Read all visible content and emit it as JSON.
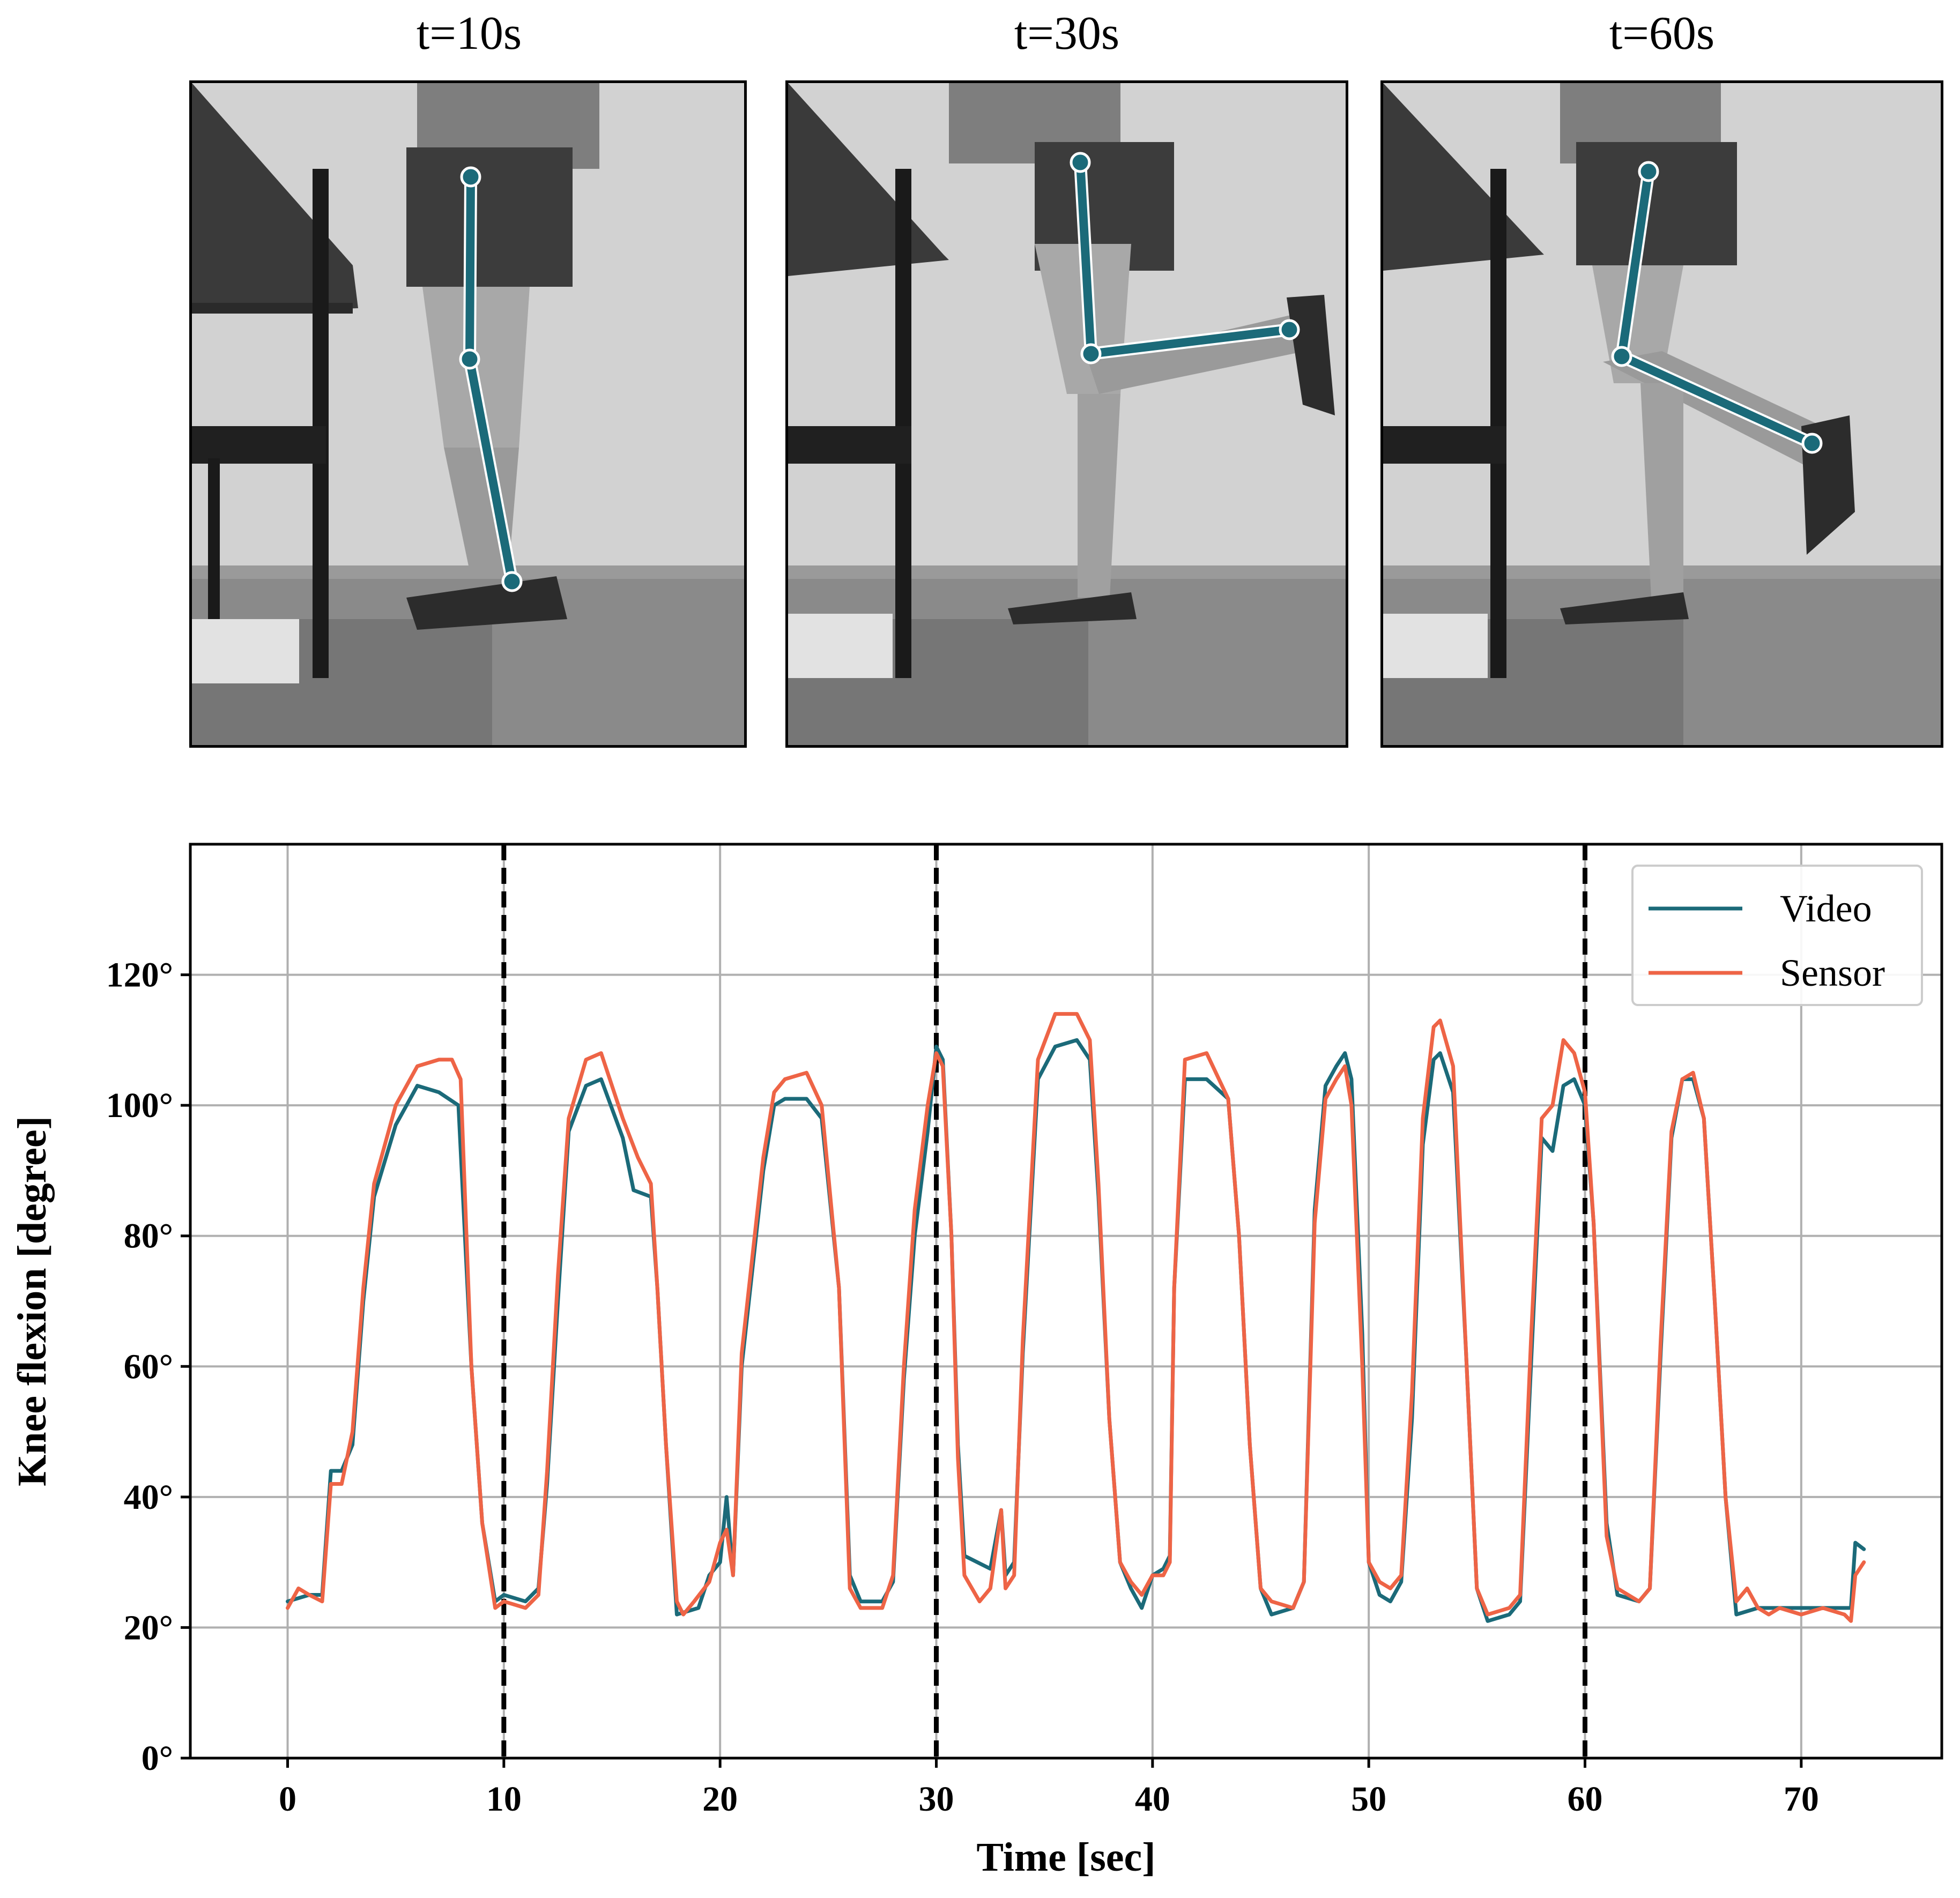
{
  "panels": [
    {
      "title": "t=10s",
      "pose": "standing"
    },
    {
      "title": "t=30s",
      "pose": "flexed-horizontal"
    },
    {
      "title": "t=60s",
      "pose": "flexed-diagonal"
    }
  ],
  "colors": {
    "video": "#1b6a79",
    "sensor": "#ee6446",
    "skeleton": "#1b6a79",
    "grid": "#b0b0b0",
    "markers": "#000000"
  },
  "chart_data": {
    "type": "line",
    "xlabel": "Time [sec]",
    "ylabel": "Knee flexion [degree]",
    "xlim": [
      -4.5,
      76.5
    ],
    "ylim": [
      0,
      140
    ],
    "xticks": [
      0,
      10,
      20,
      30,
      40,
      50,
      60,
      70
    ],
    "yticks": [
      0,
      20,
      40,
      60,
      80,
      100,
      120
    ],
    "ytick_labels": [
      "0°",
      "20°",
      "40°",
      "60°",
      "80°",
      "100°",
      "120°"
    ],
    "grid": true,
    "legend_position": "top-right",
    "vlines": [
      10,
      30,
      60
    ],
    "series": [
      {
        "name": "Video",
        "color": "#1b6a79",
        "points": [
          [
            0,
            24
          ],
          [
            1,
            25
          ],
          [
            1.6,
            25
          ],
          [
            2,
            44
          ],
          [
            2.5,
            44
          ],
          [
            3,
            48
          ],
          [
            3.5,
            70
          ],
          [
            4,
            86
          ],
          [
            5,
            97
          ],
          [
            6,
            103
          ],
          [
            7,
            102
          ],
          [
            7.9,
            100
          ],
          [
            8.5,
            60
          ],
          [
            9,
            36
          ],
          [
            9.6,
            24
          ],
          [
            10,
            25
          ],
          [
            11,
            24
          ],
          [
            11.6,
            26
          ],
          [
            12,
            42
          ],
          [
            12.5,
            70
          ],
          [
            13,
            96
          ],
          [
            13.8,
            103
          ],
          [
            14.5,
            104
          ],
          [
            15.5,
            95
          ],
          [
            16,
            87
          ],
          [
            16.8,
            86
          ],
          [
            17.1,
            72
          ],
          [
            17.5,
            48
          ],
          [
            18,
            22
          ],
          [
            19,
            23
          ],
          [
            19.5,
            28
          ],
          [
            20,
            30
          ],
          [
            20.3,
            40
          ],
          [
            20.6,
            28
          ],
          [
            21,
            60
          ],
          [
            22,
            90
          ],
          [
            22.5,
            100
          ],
          [
            23,
            101
          ],
          [
            24,
            101
          ],
          [
            24.7,
            98
          ],
          [
            25.5,
            72
          ],
          [
            26,
            28
          ],
          [
            26.5,
            24
          ],
          [
            27.5,
            24
          ],
          [
            28,
            27
          ],
          [
            28.5,
            58
          ],
          [
            29,
            80
          ],
          [
            29.6,
            96
          ],
          [
            30,
            109
          ],
          [
            30.3,
            107
          ],
          [
            30.7,
            80
          ],
          [
            31,
            48
          ],
          [
            31.3,
            31
          ],
          [
            32.5,
            29
          ],
          [
            33,
            38
          ],
          [
            33.2,
            28
          ],
          [
            33.6,
            30
          ],
          [
            34,
            62
          ],
          [
            34.7,
            104
          ],
          [
            35.5,
            109
          ],
          [
            36.5,
            110
          ],
          [
            37.1,
            107
          ],
          [
            37.5,
            86
          ],
          [
            38,
            52
          ],
          [
            38.5,
            30
          ],
          [
            39,
            26
          ],
          [
            39.5,
            23
          ],
          [
            40,
            28
          ],
          [
            40.5,
            29
          ],
          [
            40.8,
            31
          ],
          [
            41,
            72
          ],
          [
            41.5,
            104
          ],
          [
            42.5,
            104
          ],
          [
            43.5,
            101
          ],
          [
            44,
            80
          ],
          [
            44.5,
            48
          ],
          [
            45,
            26
          ],
          [
            45.5,
            22
          ],
          [
            46.5,
            23
          ],
          [
            47,
            27
          ],
          [
            47.5,
            84
          ],
          [
            48,
            103
          ],
          [
            48.5,
            106
          ],
          [
            48.9,
            108
          ],
          [
            49.2,
            104
          ],
          [
            49.7,
            65
          ],
          [
            50,
            30
          ],
          [
            50.5,
            25
          ],
          [
            51,
            24
          ],
          [
            51.5,
            27
          ],
          [
            52,
            52
          ],
          [
            52.5,
            94
          ],
          [
            53,
            107
          ],
          [
            53.3,
            108
          ],
          [
            53.9,
            102
          ],
          [
            54.5,
            62
          ],
          [
            55,
            26
          ],
          [
            55.5,
            21
          ],
          [
            56.5,
            22
          ],
          [
            57,
            24
          ],
          [
            57.5,
            60
          ],
          [
            58,
            95
          ],
          [
            58.5,
            93
          ],
          [
            59,
            103
          ],
          [
            59.5,
            104
          ],
          [
            60,
            100
          ],
          [
            60.4,
            82
          ],
          [
            61,
            36
          ],
          [
            61.5,
            25
          ],
          [
            62.5,
            24
          ],
          [
            63,
            26
          ],
          [
            63.5,
            62
          ],
          [
            64,
            95
          ],
          [
            64.5,
            104
          ],
          [
            65,
            104
          ],
          [
            65.5,
            98
          ],
          [
            66,
            70
          ],
          [
            66.5,
            40
          ],
          [
            67,
            22
          ],
          [
            68,
            23
          ],
          [
            69,
            23
          ],
          [
            70,
            23
          ],
          [
            71,
            23
          ],
          [
            72,
            23
          ],
          [
            72.3,
            23
          ],
          [
            72.5,
            33
          ],
          [
            72.9,
            32
          ]
        ]
      },
      {
        "name": "Sensor",
        "color": "#ee6446",
        "points": [
          [
            0,
            23
          ],
          [
            0.5,
            26
          ],
          [
            1,
            25
          ],
          [
            1.6,
            24
          ],
          [
            2,
            42
          ],
          [
            2.5,
            42
          ],
          [
            3,
            50
          ],
          [
            3.5,
            72
          ],
          [
            4,
            88
          ],
          [
            5,
            100
          ],
          [
            6,
            106
          ],
          [
            7,
            107
          ],
          [
            7.6,
            107
          ],
          [
            8,
            104
          ],
          [
            8.5,
            60
          ],
          [
            9,
            36
          ],
          [
            9.6,
            23
          ],
          [
            10,
            24
          ],
          [
            11,
            23
          ],
          [
            11.6,
            25
          ],
          [
            12,
            44
          ],
          [
            12.5,
            74
          ],
          [
            13,
            98
          ],
          [
            13.8,
            107
          ],
          [
            14.5,
            108
          ],
          [
            15.5,
            98
          ],
          [
            16.2,
            92
          ],
          [
            16.8,
            88
          ],
          [
            17.1,
            72
          ],
          [
            17.5,
            48
          ],
          [
            18,
            24
          ],
          [
            18.3,
            22
          ],
          [
            18.8,
            24
          ],
          [
            19.5,
            27
          ],
          [
            20,
            33
          ],
          [
            20.3,
            35
          ],
          [
            20.6,
            28
          ],
          [
            21,
            62
          ],
          [
            22,
            92
          ],
          [
            22.5,
            102
          ],
          [
            23,
            104
          ],
          [
            24,
            105
          ],
          [
            24.7,
            100
          ],
          [
            25.5,
            72
          ],
          [
            26,
            26
          ],
          [
            26.5,
            23
          ],
          [
            27.5,
            23
          ],
          [
            28,
            28
          ],
          [
            28.5,
            60
          ],
          [
            29,
            84
          ],
          [
            29.6,
            100
          ],
          [
            30,
            108
          ],
          [
            30.3,
            106
          ],
          [
            30.7,
            80
          ],
          [
            31,
            46
          ],
          [
            31.3,
            28
          ],
          [
            32,
            24
          ],
          [
            32.5,
            26
          ],
          [
            33,
            38
          ],
          [
            33.2,
            26
          ],
          [
            33.6,
            28
          ],
          [
            34,
            64
          ],
          [
            34.7,
            107
          ],
          [
            35.5,
            114
          ],
          [
            36.5,
            114
          ],
          [
            37.1,
            110
          ],
          [
            37.5,
            88
          ],
          [
            38,
            52
          ],
          [
            38.5,
            30
          ],
          [
            39,
            27
          ],
          [
            39.5,
            25
          ],
          [
            40,
            28
          ],
          [
            40.5,
            28
          ],
          [
            40.8,
            30
          ],
          [
            41,
            72
          ],
          [
            41.5,
            107
          ],
          [
            42.5,
            108
          ],
          [
            43.5,
            101
          ],
          [
            44,
            80
          ],
          [
            44.5,
            48
          ],
          [
            45,
            26
          ],
          [
            45.5,
            24
          ],
          [
            46.5,
            23
          ],
          [
            47,
            27
          ],
          [
            47.5,
            82
          ],
          [
            48,
            101
          ],
          [
            48.5,
            104
          ],
          [
            48.9,
            106
          ],
          [
            49.2,
            100
          ],
          [
            49.7,
            60
          ],
          [
            50,
            30
          ],
          [
            50.5,
            27
          ],
          [
            51,
            26
          ],
          [
            51.5,
            28
          ],
          [
            52,
            56
          ],
          [
            52.5,
            98
          ],
          [
            53,
            112
          ],
          [
            53.3,
            113
          ],
          [
            53.9,
            106
          ],
          [
            54.5,
            62
          ],
          [
            55,
            26
          ],
          [
            55.5,
            22
          ],
          [
            56.5,
            23
          ],
          [
            57,
            25
          ],
          [
            57.5,
            64
          ],
          [
            58,
            98
          ],
          [
            58.5,
            100
          ],
          [
            59,
            110
          ],
          [
            59.5,
            108
          ],
          [
            60,
            102
          ],
          [
            60.4,
            82
          ],
          [
            61,
            34
          ],
          [
            61.5,
            26
          ],
          [
            62.5,
            24
          ],
          [
            63,
            26
          ],
          [
            63.5,
            64
          ],
          [
            64,
            96
          ],
          [
            64.5,
            104
          ],
          [
            65,
            105
          ],
          [
            65.5,
            98
          ],
          [
            66,
            70
          ],
          [
            66.5,
            40
          ],
          [
            67,
            24
          ],
          [
            67.5,
            26
          ],
          [
            68,
            23
          ],
          [
            68.5,
            22
          ],
          [
            69,
            23
          ],
          [
            70,
            22
          ],
          [
            71,
            23
          ],
          [
            72,
            22
          ],
          [
            72.3,
            21
          ],
          [
            72.5,
            28
          ],
          [
            72.9,
            30
          ]
        ]
      }
    ]
  }
}
